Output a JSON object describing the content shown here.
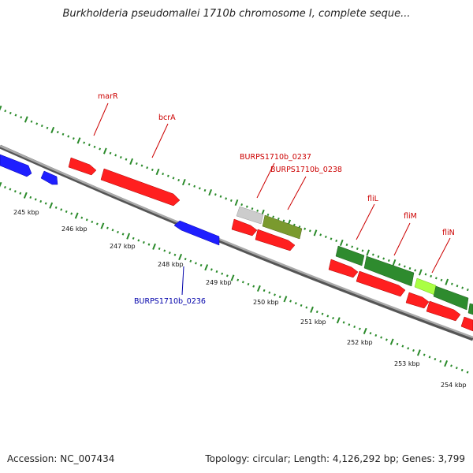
{
  "title": "Burkholderia pseudomallei 1710b chromosome I, complete seque...",
  "footer": {
    "accession": "Accession: NC_007434",
    "topology": "Topology: circular; Length: 4,126,292 bp; Genes: 3,799"
  },
  "colors": {
    "backbone": "#8c8c8c",
    "ticks_outer": "#2a8a2a",
    "ticks_inner": "#2a8a2a",
    "label_red": "#cc0000",
    "label_blue": "#0000aa",
    "forward_red": "#ff1f1f",
    "reverse_blue": "#1f1fff",
    "green": "#2e8b2e",
    "olive": "#7a9a2e",
    "light_green": "#aaff44",
    "gray": "#cccccc"
  },
  "kbp_ticks": [
    "245 kbp",
    "246 kbp",
    "247 kbp",
    "248 kbp",
    "249 kbp",
    "250 kbp",
    "251 kbp",
    "252 kbp",
    "253 kbp",
    "254 kbp"
  ],
  "gene_labels": [
    {
      "name": "marR",
      "color": "red"
    },
    {
      "name": "bcrA",
      "color": "red"
    },
    {
      "name": "BURPS1710b_0237",
      "color": "red"
    },
    {
      "name": "BURPS1710b_0238",
      "color": "red"
    },
    {
      "name": "fliL",
      "color": "red"
    },
    {
      "name": "fliM",
      "color": "red"
    },
    {
      "name": "fliN",
      "color": "red"
    },
    {
      "name": "BURPS1710b_0236",
      "color": "blue"
    }
  ]
}
